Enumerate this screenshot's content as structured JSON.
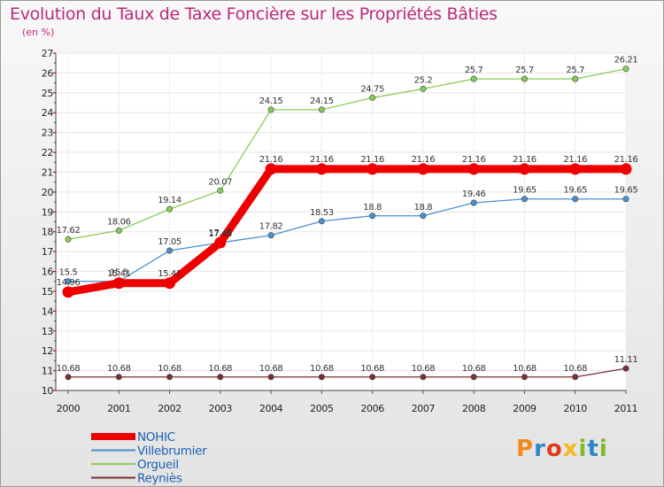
{
  "header": {
    "title": "Evolution du Taux de Taxe Foncière sur les Propriétés Bâties",
    "unit": "(en %)"
  },
  "logo": {
    "text": "Proxiti",
    "colors": [
      "#f08a1c",
      "#2e88c8",
      "#e33a1c",
      "#f6b820",
      "#7dbb2a",
      "#2e88c8",
      "#7dbb2a"
    ]
  },
  "chart_data": {
    "type": "line",
    "title": "Evolution du Taux de Taxe Foncière sur les Propriétés Bâties",
    "ylabel": "(en %)",
    "xlabel": "",
    "categories": [
      "2000",
      "2001",
      "2002",
      "2003",
      "2004",
      "2005",
      "2006",
      "2007",
      "2008",
      "2009",
      "2010",
      "2011"
    ],
    "ylim": [
      10,
      27
    ],
    "yticks": [
      10,
      11,
      12,
      13,
      14,
      15,
      16,
      17,
      18,
      19,
      20,
      21,
      22,
      23,
      24,
      25,
      26,
      27
    ],
    "series": [
      {
        "name": "NOHIC",
        "color": "#ee0000",
        "bold": true,
        "values": [
          14.96,
          15.41,
          15.41,
          17.45,
          21.16,
          21.16,
          21.16,
          21.16,
          21.16,
          21.16,
          21.16,
          21.16
        ],
        "labels": [
          "14.96",
          "15.41",
          "15.41",
          "17.45",
          "21.16",
          "21.16",
          "21.16",
          "21.16",
          "21.16",
          "21.16",
          "21.16",
          "21.16"
        ]
      },
      {
        "name": "Villebrumier",
        "color": "#4a8ed0",
        "bold": false,
        "values": [
          15.5,
          15.5,
          17.05,
          17.45,
          17.82,
          18.53,
          18.8,
          18.8,
          19.46,
          19.65,
          19.65,
          19.65
        ],
        "labels": [
          "15.5",
          "15.5",
          "17.05",
          "17.45",
          "17.82",
          "18.53",
          "18.8",
          "18.8",
          "19.46",
          "19.65",
          "19.65",
          "19.65"
        ]
      },
      {
        "name": "Orgueil",
        "color": "#88cc55",
        "bold": false,
        "values": [
          17.62,
          18.06,
          19.14,
          20.07,
          24.15,
          24.15,
          24.75,
          25.2,
          25.7,
          25.7,
          25.7,
          26.21
        ],
        "labels": [
          "17.62",
          "18.06",
          "19.14",
          "20.07",
          "24.15",
          "24.15",
          "24.75",
          "25.2",
          "25.7",
          "25.7",
          "25.7",
          "26.21"
        ]
      },
      {
        "name": "Reyniès",
        "color": "#7a2e38",
        "bold": false,
        "values": [
          10.68,
          10.68,
          10.68,
          10.68,
          10.68,
          10.68,
          10.68,
          10.68,
          10.68,
          10.68,
          10.68,
          11.11
        ],
        "labels": [
          "10.68",
          "10.68",
          "10.68",
          "10.68",
          "10.68",
          "10.68",
          "10.68",
          "10.68",
          "10.68",
          "10.68",
          "10.68",
          "11.11"
        ]
      }
    ],
    "legend_position": "bottom-left",
    "grid": true
  }
}
